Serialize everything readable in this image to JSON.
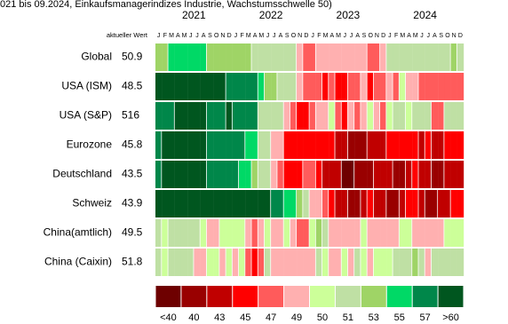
{
  "chart_data": {
    "type": "heatmap",
    "title": "021 bis 09.2024, Einkaufsmanagerindizes Industrie, Wachstumsschwelle 50)",
    "years": [
      "2021",
      "2022",
      "2023",
      "2024"
    ],
    "current_header": "aktueller Wert",
    "categories": [
      "J",
      "F",
      "M",
      "A",
      "M",
      "J",
      "J",
      "A",
      "S",
      "O",
      "N",
      "D",
      "J",
      "F",
      "M",
      "A",
      "M",
      "J",
      "J",
      "A",
      "S",
      "O",
      "N",
      "D",
      "J",
      "F",
      "M",
      "A",
      "M",
      "J",
      "J",
      "A",
      "S",
      "O",
      "N",
      "D",
      "J",
      "F",
      "M",
      "A",
      "M",
      "J",
      "J",
      "A",
      "S",
      "O",
      "N",
      "D"
    ],
    "series": [
      {
        "name": "Global",
        "current": 50.9,
        "values": [
          53,
          53,
          55,
          55,
          55,
          55,
          55,
          55,
          53,
          53,
          53,
          53,
          53,
          53,
          53,
          51,
          51,
          51,
          51,
          51,
          51,
          51,
          49,
          47,
          47,
          49,
          49,
          49,
          49,
          49,
          49,
          49,
          49,
          47,
          47,
          49,
          51,
          51,
          51,
          51,
          51,
          51,
          51,
          51,
          51,
          51,
          53,
          51
        ]
      },
      {
        "name": "USA (ISM)",
        "current": 48.5,
        "values": [
          60,
          61,
          61,
          61,
          61,
          61,
          60,
          60,
          61,
          61,
          61,
          57,
          57,
          57,
          57,
          57,
          55,
          53,
          53,
          51,
          51,
          51,
          49,
          47,
          47,
          47,
          45,
          47,
          45,
          45,
          47,
          47,
          49,
          45,
          47,
          47,
          49,
          47,
          50,
          49,
          49,
          47,
          47,
          47,
          47,
          47,
          47,
          47
        ]
      },
      {
        "name": "USA (S&P)",
        "current": 516,
        "values": [
          57,
          57,
          57,
          60,
          61,
          61,
          61,
          61,
          57,
          57,
          57,
          60,
          57,
          57,
          57,
          57,
          51,
          51,
          51,
          51,
          49,
          47,
          45,
          45,
          47,
          49,
          49,
          50,
          47,
          45,
          49,
          47,
          49,
          50,
          49,
          47,
          50,
          51,
          51,
          50,
          51,
          51,
          51,
          47,
          47,
          51,
          51,
          51
        ]
      },
      {
        "name": "Eurozone",
        "current": 45.8,
        "values": [
          57,
          61,
          61,
          61,
          61,
          61,
          61,
          61,
          57,
          57,
          57,
          57,
          57,
          57,
          55,
          55,
          51,
          51,
          49,
          49,
          45,
          45,
          45,
          45,
          45,
          45,
          45,
          45,
          43,
          43,
          40,
          40,
          40,
          43,
          43,
          43,
          45,
          45,
          45,
          45,
          45,
          43,
          45,
          43,
          43,
          45,
          45,
          45
        ]
      },
      {
        "name": "Deutschland",
        "current": 43.5,
        "values": [
          57,
          61,
          61,
          61,
          61,
          61,
          61,
          61,
          57,
          57,
          57,
          57,
          57,
          55,
          55,
          53,
          51,
          51,
          49,
          47,
          45,
          45,
          45,
          47,
          47,
          45,
          43,
          43,
          43,
          39,
          39,
          40,
          40,
          40,
          43,
          43,
          43,
          40,
          40,
          43,
          45,
          43,
          43,
          40,
          40,
          43,
          43,
          43
        ]
      },
      {
        "name": "Schweiz",
        "current": 43.9,
        "values": [
          61,
          61,
          61,
          61,
          61,
          61,
          61,
          61,
          61,
          61,
          61,
          61,
          61,
          61,
          61,
          61,
          61,
          61,
          57,
          57,
          55,
          55,
          53,
          51,
          49,
          49,
          47,
          45,
          43,
          43,
          40,
          40,
          43,
          45,
          43,
          43,
          40,
          40,
          43,
          45,
          45,
          43,
          40,
          40,
          43,
          43,
          45,
          45
        ]
      },
      {
        "name": "China(amtlich)",
        "current": 49.5,
        "values": [
          51,
          50,
          51,
          51,
          51,
          51,
          51,
          50,
          49,
          49,
          50,
          50,
          50,
          50,
          49,
          47,
          49,
          50,
          49,
          49,
          50,
          49,
          47,
          47,
          50,
          53,
          51,
          49,
          49,
          49,
          49,
          49,
          50,
          49,
          49,
          49,
          49,
          49,
          50,
          50,
          49,
          49,
          49,
          49,
          49,
          50,
          50,
          50
        ]
      },
      {
        "name": "China (Caixin)",
        "current": 51.8,
        "values": [
          51,
          50,
          51,
          51,
          51,
          51,
          49,
          49,
          50,
          50,
          49,
          50,
          49,
          50,
          47,
          45,
          47,
          51,
          49,
          49,
          49,
          49,
          49,
          49,
          49,
          51,
          50,
          49,
          49,
          50,
          49,
          51,
          50,
          49,
          50,
          50,
          50,
          51,
          51,
          51,
          53,
          51,
          49,
          51,
          51,
          51,
          51,
          51
        ]
      }
    ],
    "legend": [
      {
        "value": 40,
        "label": "<40",
        "color": "#6e0000"
      },
      {
        "value": 40,
        "label": "40",
        "color": "#990000"
      },
      {
        "value": 43,
        "label": "43",
        "color": "#c00000"
      },
      {
        "value": 45,
        "label": "45",
        "color": "#ff0000"
      },
      {
        "value": 47,
        "label": "47",
        "color": "#ff5b5b"
      },
      {
        "value": 49,
        "label": "49",
        "color": "#ffb0b0"
      },
      {
        "value": 50,
        "label": "50",
        "color": "#ccff99"
      },
      {
        "value": 51,
        "label": "51",
        "color": "#bfe0a4"
      },
      {
        "value": 53,
        "label": "53",
        "color": "#9fd466"
      },
      {
        "value": 55,
        "label": "55",
        "color": "#00d966"
      },
      {
        "value": 57,
        "label": "57",
        "color": "#00874a"
      },
      {
        "value": 60,
        "label": ">60",
        "color": "#00561f"
      }
    ]
  }
}
